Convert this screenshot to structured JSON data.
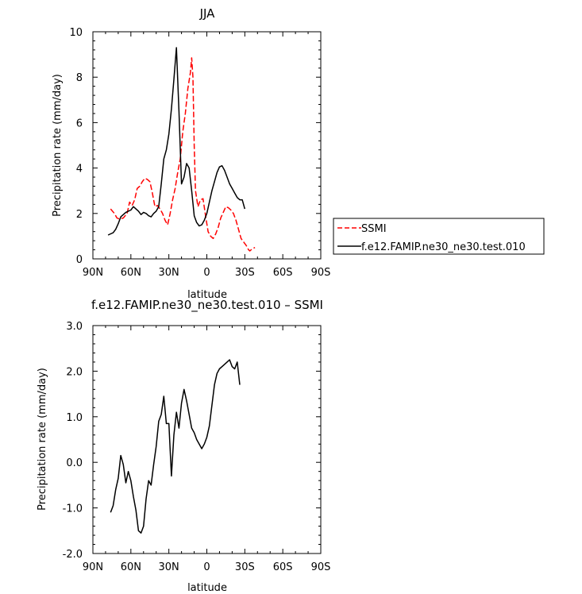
{
  "chart_data": [
    {
      "type": "line",
      "title": "JJA",
      "xlabel": "latitude",
      "ylabel": "Precipitation rate (mm/day)",
      "xlim": [
        -90,
        90
      ],
      "ylim": [
        0,
        10
      ],
      "x_ticks": [
        {
          "value": -90,
          "label": "90N"
        },
        {
          "value": -60,
          "label": "60N"
        },
        {
          "value": -30,
          "label": "30N"
        },
        {
          "value": 0,
          "label": "0"
        },
        {
          "value": 30,
          "label": "30S"
        },
        {
          "value": 60,
          "label": "60S"
        },
        {
          "value": 90,
          "label": "90S"
        }
      ],
      "y_ticks": [
        {
          "value": 0,
          "label": "0"
        },
        {
          "value": 2,
          "label": "2"
        },
        {
          "value": 4,
          "label": "4"
        },
        {
          "value": 6,
          "label": "6"
        },
        {
          "value": 8,
          "label": "8"
        },
        {
          "value": 10,
          "label": "10"
        }
      ],
      "legend_position": "outside-right",
      "series": [
        {
          "name": "SSMI",
          "color": "#ff0000",
          "dash": "dashed",
          "points": [
            [
              -76,
              2.2
            ],
            [
              -73,
              2.0
            ],
            [
              -71,
              1.8
            ],
            [
              -69,
              1.75
            ],
            [
              -66,
              1.8
            ],
            [
              -63,
              2.0
            ],
            [
              -61,
              2.5
            ],
            [
              -59,
              2.35
            ],
            [
              -57,
              2.6
            ],
            [
              -55,
              3.1
            ],
            [
              -53,
              3.2
            ],
            [
              -51,
              3.4
            ],
            [
              -49,
              3.55
            ],
            [
              -47,
              3.5
            ],
            [
              -45,
              3.4
            ],
            [
              -43,
              2.9
            ],
            [
              -41,
              2.3
            ],
            [
              -39,
              2.35
            ],
            [
              -37,
              2.2
            ],
            [
              -35,
              2.0
            ],
            [
              -33,
              1.7
            ],
            [
              -31,
              1.5
            ],
            [
              -29,
              2.0
            ],
            [
              -27,
              2.6
            ],
            [
              -25,
              3.1
            ],
            [
              -23,
              3.8
            ],
            [
              -21,
              4.4
            ],
            [
              -19,
              5.6
            ],
            [
              -17,
              6.4
            ],
            [
              -15,
              7.5
            ],
            [
              -13,
              8.2
            ],
            [
              -12,
              8.85
            ],
            [
              -11,
              8.0
            ],
            [
              -10,
              5.0
            ],
            [
              -9,
              3.0
            ],
            [
              -7,
              2.3
            ],
            [
              -5,
              2.6
            ],
            [
              -3,
              2.65
            ],
            [
              -1,
              1.9
            ],
            [
              1,
              1.2
            ],
            [
              3,
              1.0
            ],
            [
              5,
              0.9
            ],
            [
              7,
              1.1
            ],
            [
              9,
              1.4
            ],
            [
              11,
              1.8
            ],
            [
              13,
              2.05
            ],
            [
              15,
              2.3
            ],
            [
              17,
              2.25
            ],
            [
              19,
              2.15
            ],
            [
              21,
              2.0
            ],
            [
              23,
              1.7
            ],
            [
              25,
              1.3
            ],
            [
              27,
              0.9
            ],
            [
              29,
              0.75
            ],
            [
              31,
              0.6
            ],
            [
              33,
              0.4
            ],
            [
              34,
              0.35
            ],
            [
              36,
              0.45
            ],
            [
              38,
              0.5
            ]
          ]
        },
        {
          "name": "f.e12.FAMIP.ne30_ne30.test.010",
          "color": "#000000",
          "dash": "solid",
          "points": [
            [
              -78,
              1.05
            ],
            [
              -76,
              1.1
            ],
            [
              -74,
              1.15
            ],
            [
              -72,
              1.3
            ],
            [
              -70,
              1.55
            ],
            [
              -68,
              1.85
            ],
            [
              -66,
              1.95
            ],
            [
              -64,
              2.05
            ],
            [
              -62,
              2.1
            ],
            [
              -60,
              2.15
            ],
            [
              -58,
              2.3
            ],
            [
              -56,
              2.2
            ],
            [
              -54,
              2.1
            ],
            [
              -52,
              1.95
            ],
            [
              -50,
              2.05
            ],
            [
              -48,
              2.0
            ],
            [
              -46,
              1.9
            ],
            [
              -44,
              1.85
            ],
            [
              -42,
              2.0
            ],
            [
              -40,
              2.1
            ],
            [
              -38,
              2.3
            ],
            [
              -36,
              3.3
            ],
            [
              -34,
              4.4
            ],
            [
              -32,
              4.8
            ],
            [
              -30,
              5.5
            ],
            [
              -28,
              6.6
            ],
            [
              -26,
              7.9
            ],
            [
              -24,
              9.3
            ],
            [
              -22,
              6.5
            ],
            [
              -20,
              3.3
            ],
            [
              -18,
              3.6
            ],
            [
              -16,
              4.2
            ],
            [
              -14,
              4.0
            ],
            [
              -12,
              3.0
            ],
            [
              -10,
              1.9
            ],
            [
              -8,
              1.6
            ],
            [
              -6,
              1.45
            ],
            [
              -4,
              1.5
            ],
            [
              -2,
              1.7
            ],
            [
              0,
              2.0
            ],
            [
              2,
              2.5
            ],
            [
              4,
              3.0
            ],
            [
              6,
              3.4
            ],
            [
              8,
              3.8
            ],
            [
              10,
              4.05
            ],
            [
              12,
              4.1
            ],
            [
              14,
              3.9
            ],
            [
              16,
              3.6
            ],
            [
              18,
              3.3
            ],
            [
              20,
              3.1
            ],
            [
              22,
              2.9
            ],
            [
              24,
              2.7
            ],
            [
              26,
              2.6
            ],
            [
              28,
              2.6
            ],
            [
              30,
              2.2
            ]
          ]
        }
      ]
    },
    {
      "type": "line",
      "title": "f.e12.FAMIP.ne30_ne30.test.010 – SSMI",
      "xlabel": "latitude",
      "ylabel": "Precipitation rate (mm/day)",
      "xlim": [
        -90,
        90
      ],
      "ylim": [
        -2,
        3
      ],
      "x_ticks": [
        {
          "value": -90,
          "label": "90N"
        },
        {
          "value": -60,
          "label": "60N"
        },
        {
          "value": -30,
          "label": "30N"
        },
        {
          "value": 0,
          "label": "0"
        },
        {
          "value": 30,
          "label": "30S"
        },
        {
          "value": 60,
          "label": "60S"
        },
        {
          "value": 90,
          "label": "90S"
        }
      ],
      "y_ticks": [
        {
          "value": -2,
          "label": "-2.0"
        },
        {
          "value": -1,
          "label": "-1.0"
        },
        {
          "value": 0,
          "label": "0.0"
        },
        {
          "value": 1,
          "label": "1.0"
        },
        {
          "value": 2,
          "label": "2.0"
        },
        {
          "value": 3,
          "label": "3.0"
        }
      ],
      "series": [
        {
          "name": "",
          "color": "#000000",
          "dash": "solid",
          "points": [
            [
              -76,
              -1.1
            ],
            [
              -74,
              -0.95
            ],
            [
              -72,
              -0.6
            ],
            [
              -70,
              -0.35
            ],
            [
              -68,
              0.15
            ],
            [
              -66,
              -0.05
            ],
            [
              -64,
              -0.45
            ],
            [
              -62,
              -0.2
            ],
            [
              -60,
              -0.4
            ],
            [
              -58,
              -0.75
            ],
            [
              -56,
              -1.05
            ],
            [
              -54,
              -1.5
            ],
            [
              -52,
              -1.55
            ],
            [
              -50,
              -1.4
            ],
            [
              -48,
              -0.8
            ],
            [
              -46,
              -0.4
            ],
            [
              -44,
              -0.5
            ],
            [
              -42,
              -0.05
            ],
            [
              -40,
              0.35
            ],
            [
              -38,
              0.9
            ],
            [
              -36,
              1.05
            ],
            [
              -34,
              1.45
            ],
            [
              -32,
              0.85
            ],
            [
              -30,
              0.85
            ],
            [
              -28,
              -0.3
            ],
            [
              -26,
              0.6
            ],
            [
              -24,
              1.1
            ],
            [
              -22,
              0.75
            ],
            [
              -20,
              1.3
            ],
            [
              -18,
              1.6
            ],
            [
              -16,
              1.35
            ],
            [
              -14,
              1.05
            ],
            [
              -12,
              0.75
            ],
            [
              -10,
              0.65
            ],
            [
              -8,
              0.5
            ],
            [
              -6,
              0.4
            ],
            [
              -4,
              0.3
            ],
            [
              -2,
              0.4
            ],
            [
              0,
              0.55
            ],
            [
              2,
              0.8
            ],
            [
              4,
              1.25
            ],
            [
              6,
              1.7
            ],
            [
              8,
              1.95
            ],
            [
              10,
              2.05
            ],
            [
              12,
              2.1
            ],
            [
              14,
              2.15
            ],
            [
              16,
              2.2
            ],
            [
              18,
              2.25
            ],
            [
              20,
              2.1
            ],
            [
              22,
              2.05
            ],
            [
              24,
              2.2
            ],
            [
              26,
              1.7
            ]
          ]
        }
      ]
    }
  ]
}
